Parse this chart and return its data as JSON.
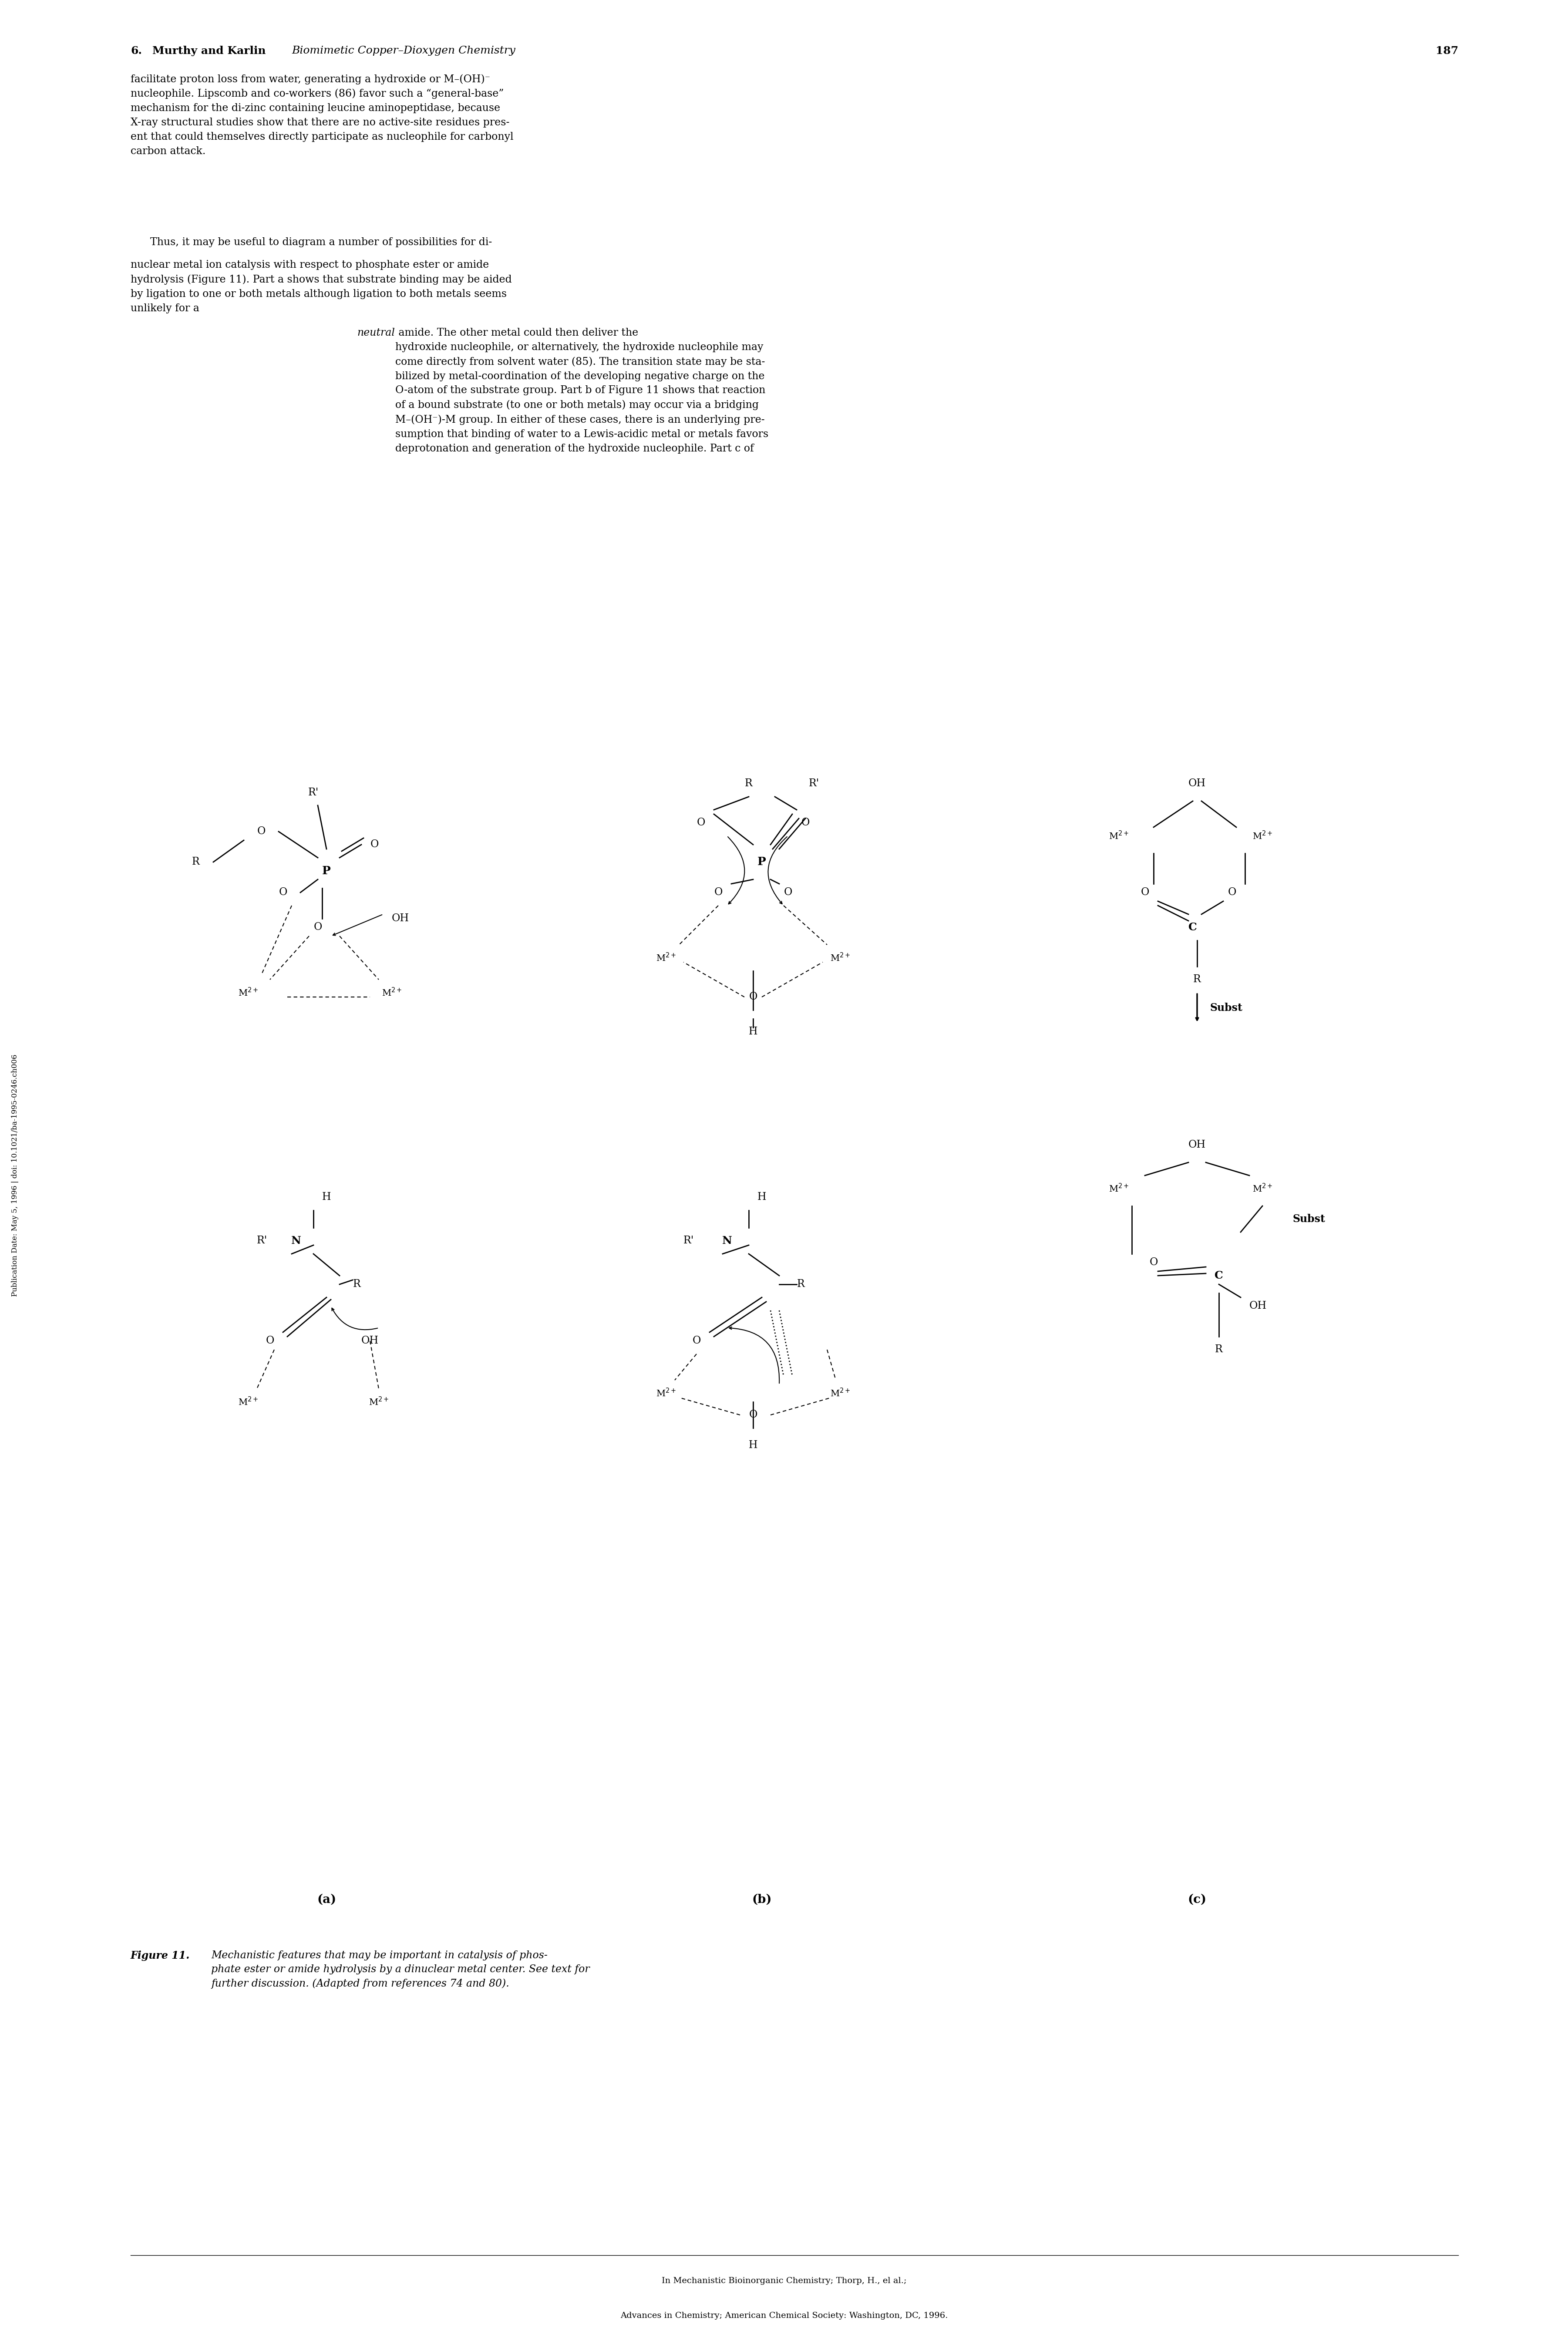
{
  "page_width": 36.02,
  "page_height": 54.0,
  "bg_color": "#ffffff",
  "header_text": "6.  Murthy and Karlin Biomimetic Copper–Dioxygen Chemistry    187",
  "header_number": "6.",
  "header_authors": "Murthy and Karlin",
  "header_title_italic": "Biomimetic Copper–Dioxygen Chemistry",
  "header_page": "187",
  "para1": "facilitate proton loss from water, generating a hydroxide or M–(OH)⁻ nucleophile. Lipscomb and co-workers (86) favor such a “general-base” mechanism for the di-zinc containing leucine aminopeptidase, because X-ray structural studies show that there are no active-site residues present that could themselves directly participate as nucleophile for carbonyl carbon attack.",
  "para2": "Thus, it may be useful to diagram a number of possibilities for dinuclear metal ion catalysis with respect to phosphate ester or amide hydrolysis (Figure 11). Part a shows that substrate binding may be aided by ligation to one or both metals although ligation to both metals seems unlikely for a neutral amide. The other metal could then deliver the hydroxide nucleophile, or alternatively, the hydroxide nucleophile may come directly from solvent water (85). The transition state may be stabilized by metal-coordination of the developing negative charge on the O-atom of the substrate group. Part b of Figure 11 shows that reaction of a bound substrate (to one or both metals) may occur via a bridging M–(OH⁻)-M group. In either of these cases, there is an underlying presumption that binding of water to a Lewis-acidic metal or metals favors deprotonation and generation of the hydroxide nucleophile. Part c of",
  "figure_caption_bold": "Figure 11.",
  "figure_caption_italic": "Mechanistic features that may be important in catalysis of phosphate ester or amide hydrolysis by a dinuclear metal center. See text for further discussion. (Adapted from references 74 and 80).",
  "footer1": "In Mechanistic Bioinorganic Chemistry; Thorp, H., el al.;",
  "footer2": "Advances in Chemistry; American Chemical Society: Washington, DC, 1996.",
  "sidebar_text": "Publication Date: May 5, 1996 | doi: 10.1021/ba-1995-0246.ch006"
}
